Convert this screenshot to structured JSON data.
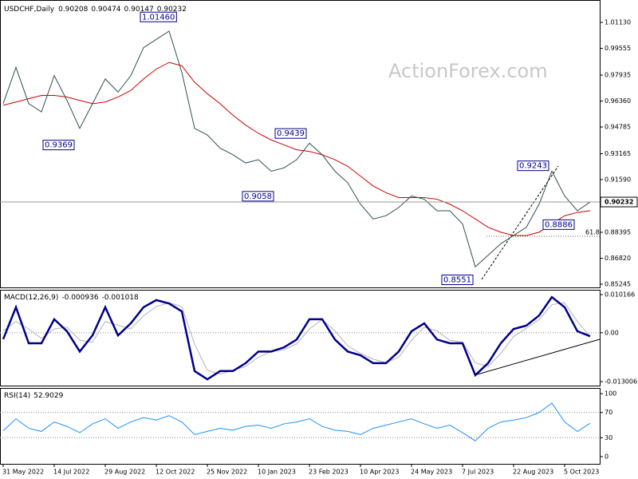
{
  "chart_data": [
    {
      "type": "line",
      "title": "USDCHF,Daily",
      "ohlc": [
        0.90208,
        0.90474,
        0.90147,
        0.90232
      ],
      "watermark": "ActionForex.com",
      "categories": [
        "31 May 2022",
        null,
        null,
        null,
        "14 Jul 2022",
        null,
        null,
        null,
        "29 Aug 2022",
        null,
        null,
        null,
        "12 Oct 2022",
        null,
        null,
        null,
        "25 Nov 2022",
        null,
        null,
        null,
        "10 Jan 2023",
        null,
        null,
        null,
        "23 Feb 2023",
        null,
        null,
        null,
        "10 Apr 2023",
        null,
        null,
        null,
        "24 May 2023",
        null,
        null,
        null,
        "7 Jul 2023",
        null,
        null,
        null,
        "22 Aug 2023",
        null,
        null,
        null,
        "5 Oct 2023",
        null,
        null
      ],
      "series": [
        {
          "color": "#2f4f4f",
          "values": [
            0.962,
            0.984,
            0.962,
            0.957,
            0.979,
            0.964,
            0.947,
            0.962,
            0.977,
            0.969,
            0.979,
            0.996,
            1.001,
            1.006,
            0.981,
            0.947,
            0.943,
            0.935,
            0.931,
            0.926,
            0.928,
            0.921,
            0.923,
            0.928,
            0.938,
            0.931,
            0.921,
            0.914,
            0.901,
            0.892,
            0.894,
            0.899,
            0.906,
            0.904,
            0.897,
            0.897,
            0.889,
            0.863,
            0.87,
            0.877,
            0.882,
            0.887,
            0.901,
            0.921,
            0.906,
            0.897,
            0.90232
          ]
        },
        {
          "color": "#cc0000",
          "values": [
            0.961,
            0.963,
            0.965,
            0.967,
            0.967,
            0.966,
            0.964,
            0.962,
            0.963,
            0.966,
            0.97,
            0.977,
            0.983,
            0.987,
            0.985,
            0.975,
            0.968,
            0.962,
            0.955,
            0.949,
            0.944,
            0.94,
            0.937,
            0.934,
            0.933,
            0.931,
            0.928,
            0.924,
            0.918,
            0.912,
            0.908,
            0.905,
            0.905,
            0.905,
            0.904,
            0.901,
            0.897,
            0.892,
            0.887,
            0.884,
            0.882,
            0.882,
            0.884,
            0.889,
            0.894,
            0.896,
            0.897
          ]
        }
      ],
      "current_price": 0.90232,
      "annotations": [
        {
          "value": 1.0146,
          "label": "1.01460"
        },
        0.9369,
        0.9439,
        0.9058,
        0.9243,
        0.8886,
        0.8551
      ],
      "fib_label": "61.8",
      "ylim": [
        0.8505,
        1.0249
      ],
      "yticks": [
        {
          "value": 1.0113,
          "label": "1.01130"
        },
        0.99555,
        0.97935,
        {
          "value": 0.9636,
          "label": "0.96360"
        },
        0.94785,
        0.93165,
        {
          "value": 0.9159,
          "label": "0.91590"
        },
        0.88395,
        {
          "value": 0.8682,
          "label": "0.86820"
        },
        0.85245
      ]
    },
    {
      "type": "line",
      "title": "MACD(12,26,9)",
      "header_values": [
        -0.000936,
        -0.001018
      ],
      "series": [
        {
          "color": "#00008b",
          "values": [
            -0.0017,
            0.0068,
            -0.0028,
            -0.0028,
            0.0036,
            0.0004,
            -0.005,
            -0.0007,
            0.0068,
            -0.0007,
            0.0025,
            0.0068,
            0.0087,
            0.0078,
            0.0057,
            -0.0102,
            -0.0124,
            -0.0102,
            -0.0102,
            -0.0081,
            -0.005,
            -0.005,
            -0.0039,
            -0.0018,
            0.0036,
            0.0036,
            -0.0018,
            -0.005,
            -0.006,
            -0.0081,
            -0.0081,
            -0.005,
            0.0004,
            0.0025,
            -0.0018,
            -0.0028,
            -0.0028,
            -0.0113,
            -0.0081,
            -0.0028,
            0.001,
            0.0019,
            0.0046,
            0.0095,
            0.0068,
            0.0004,
            -0.000936
          ]
        },
        {
          "color": "#b4b4b4",
          "values": [
            0.0005,
            0.003,
            0.001,
            -0.0015,
            0.001,
            0.0015,
            -0.002,
            -0.0025,
            0.003,
            0.002,
            0.001,
            0.0045,
            0.007,
            0.008,
            0.007,
            -0.003,
            -0.01,
            -0.011,
            -0.01,
            -0.009,
            -0.0065,
            -0.005,
            -0.0045,
            -0.003,
            0.001,
            0.0035,
            0.0005,
            -0.0035,
            -0.0055,
            -0.007,
            -0.008,
            -0.0065,
            -0.002,
            0.0015,
            0.0005,
            -0.002,
            -0.0025,
            -0.008,
            -0.009,
            -0.0055,
            -0.001,
            0.0012,
            0.0035,
            0.0075,
            0.008,
            0.003,
            -0.001018
          ]
        }
      ],
      "ylim": [
        -0.01407,
        0.011442
      ],
      "yticks": [
        0.010166,
        {
          "value": 0,
          "label": "0.00"
        },
        -0.013006
      ]
    },
    {
      "type": "line",
      "title": "RSI(14)",
      "header_values": [
        52.9029
      ],
      "series": [
        {
          "color": "#1e90ff",
          "values": [
            41,
            60,
            45,
            40,
            55,
            48,
            38,
            52,
            60,
            45,
            55,
            62,
            58,
            65,
            55,
            35,
            40,
            45,
            42,
            48,
            50,
            45,
            52,
            55,
            60,
            48,
            42,
            40,
            35,
            45,
            50,
            55,
            60,
            52,
            45,
            50,
            38,
            25,
            45,
            55,
            58,
            62,
            70,
            85,
            55,
            40,
            52.9029
          ]
        }
      ],
      "ylim": [
        -11.5,
        109
      ],
      "yticks": [
        100,
        70,
        30,
        0
      ]
    }
  ]
}
